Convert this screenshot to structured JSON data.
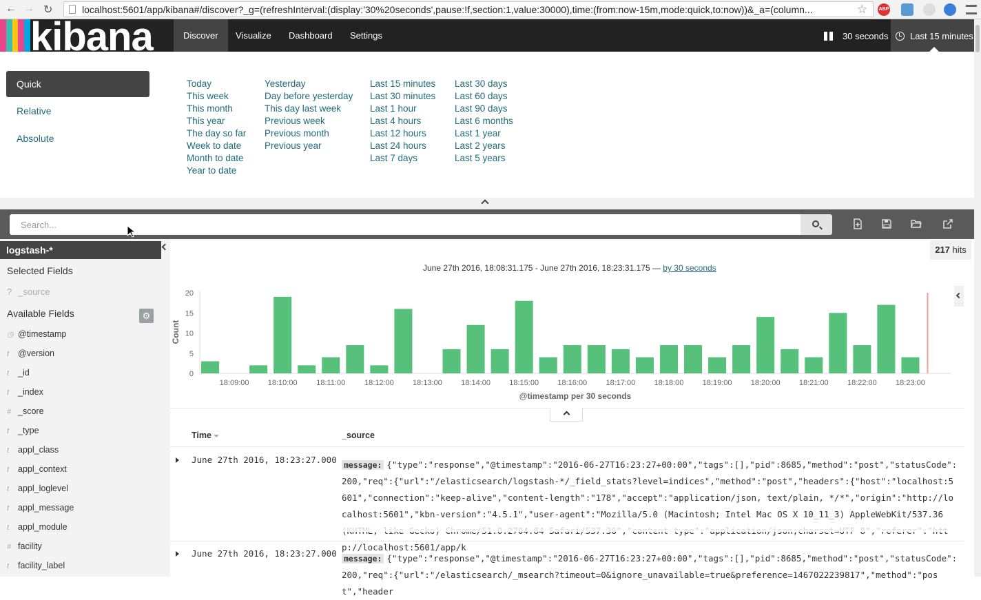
{
  "browser": {
    "url": "localhost:5601/app/kibana#/discover?_g=(refreshInterval:(display:'30%20seconds',pause:!f,section:1,value:30000),time:(from:now-15m,mode:quick,to:now))&_a=(column..."
  },
  "nav": {
    "logo": "kibana",
    "tabs": [
      {
        "label": "Discover",
        "active": true
      },
      {
        "label": "Visualize",
        "active": false
      },
      {
        "label": "Dashboard",
        "active": false
      },
      {
        "label": "Settings",
        "active": false
      }
    ],
    "refresh_label": "30 seconds",
    "time_label": "Last 15 minutes"
  },
  "timepicker": {
    "modes": [
      "Quick",
      "Relative",
      "Absolute"
    ],
    "columns": [
      [
        "Today",
        "This week",
        "This month",
        "This year",
        "The day so far",
        "Week to date",
        "Month to date",
        "Year to date"
      ],
      [
        "Yesterday",
        "Day before yesterday",
        "This day last week",
        "Previous week",
        "Previous month",
        "Previous year"
      ],
      [
        "Last 15 minutes",
        "Last 30 minutes",
        "Last 1 hour",
        "Last 4 hours",
        "Last 12 hours",
        "Last 24 hours",
        "Last 7 days"
      ],
      [
        "Last 30 days",
        "Last 60 days",
        "Last 90 days",
        "Last 6 months",
        "Last 1 year",
        "Last 2 years",
        "Last 5 years"
      ]
    ]
  },
  "search": {
    "placeholder": "Search..."
  },
  "sidebar": {
    "index_pattern": "logstash-*",
    "selected_title": "Selected Fields",
    "selected_field": "_source",
    "selected_field_type": "?",
    "available_title": "Available Fields",
    "fields": [
      {
        "type": "clock",
        "name": "@timestamp"
      },
      {
        "type": "t",
        "name": "@version"
      },
      {
        "type": "t",
        "name": "_id"
      },
      {
        "type": "t",
        "name": "_index"
      },
      {
        "type": "#",
        "name": "_score"
      },
      {
        "type": "t",
        "name": "_type"
      },
      {
        "type": "t",
        "name": "appl_class"
      },
      {
        "type": "t",
        "name": "appl_context"
      },
      {
        "type": "t",
        "name": "appl_loglevel"
      },
      {
        "type": "t",
        "name": "appl_message"
      },
      {
        "type": "t",
        "name": "appl_module"
      },
      {
        "type": "#",
        "name": "facility"
      },
      {
        "type": "t",
        "name": "facility_label"
      }
    ]
  },
  "hits": {
    "count": "217",
    "label": "hits"
  },
  "range": {
    "text": "June 27th 2016, 18:08:31.175 - June 27th 2016, 18:23:31.175 — ",
    "interval_link": "by 30 seconds"
  },
  "chart_data": {
    "type": "bar",
    "categories": [
      "18:08:30",
      "18:09:00",
      "18:09:30",
      "18:10:00",
      "18:10:30",
      "18:11:00",
      "18:11:30",
      "18:12:00",
      "18:12:30",
      "18:13:00",
      "18:13:30",
      "18:14:00",
      "18:14:30",
      "18:15:00",
      "18:15:30",
      "18:16:00",
      "18:16:30",
      "18:17:00",
      "18:17:30",
      "18:18:00",
      "18:18:30",
      "18:19:00",
      "18:19:30",
      "18:20:00",
      "18:20:30",
      "18:21:00",
      "18:21:30",
      "18:22:00",
      "18:22:30",
      "18:23:00"
    ],
    "values": [
      3,
      0,
      2,
      19,
      2,
      4,
      7,
      2,
      16,
      0,
      6,
      12,
      6,
      18,
      4,
      7,
      7,
      6,
      4,
      7,
      7,
      4,
      7,
      14,
      6,
      4,
      15,
      7,
      17,
      4
    ],
    "xticks": [
      "18:09:00",
      "18:10:00",
      "18:11:00",
      "18:12:00",
      "18:13:00",
      "18:14:00",
      "18:15:00",
      "18:16:00",
      "18:17:00",
      "18:18:00",
      "18:19:00",
      "18:20:00",
      "18:21:00",
      "18:22:00",
      "18:23:00"
    ],
    "yticks": [
      0,
      5,
      10,
      15,
      20
    ],
    "ylim": [
      0,
      20
    ],
    "xlabel": "@timestamp per 30 seconds",
    "ylabel": "Count",
    "bar_color": "#57c17b",
    "now_marker_color": "#e8a39a"
  },
  "table": {
    "columns": [
      "Time",
      "_source"
    ],
    "rows": [
      {
        "time": "June 27th 2016, 18:23:27.000",
        "key": "message:",
        "source": "{\"type\":\"response\",\"@timestamp\":\"2016-06-27T16:23:27+00:00\",\"tags\":[],\"pid\":8685,\"method\":\"post\",\"statusCode\":200,\"req\":{\"url\":\"/elasticsearch/logstash-*/_field_stats?level=indices\",\"method\":\"post\",\"headers\":{\"host\":\"localhost:5601\",\"connection\":\"keep-alive\",\"content-length\":\"178\",\"accept\":\"application/json, text/plain, */*\",\"origin\":\"http://localhost:5601\",\"kbn-version\":\"4.5.1\",\"user-agent\":\"Mozilla/5.0 (Macintosh; Intel Mac OS X 10_11_3) AppleWebKit/537.36 (KHTML, like Gecko) Chrome/51.0.2704.84 Safari/537.36\",\"content-type\":\"application/json;charset=UTF-8\",\"referer\":\"http://localhost:5601/app/k"
      },
      {
        "time": "June 27th 2016, 18:23:27.000",
        "key": "message:",
        "source": "{\"type\":\"response\",\"@timestamp\":\"2016-06-27T16:23:27+00:00\",\"tags\":[],\"pid\":8685,\"method\":\"post\",\"statusCode\":200,\"req\":{\"url\":\"/elasticsearch/_msearch?timeout=0&ignore_unavailable=true&preference=1467022239817\",\"method\":\"post\",\"header"
      }
    ]
  }
}
